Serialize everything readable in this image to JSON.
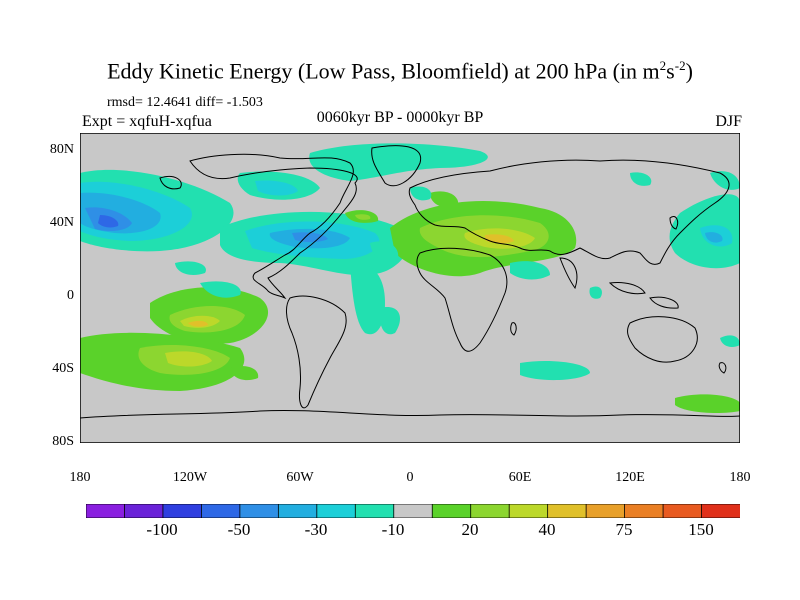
{
  "figure": {
    "title": "Eddy Kinetic Energy (Low Pass, Bloomfield) at 200 hPa (in m",
    "title_unit_sup1": "2",
    "title_mid": "s",
    "title_unit_sup2": "-2",
    "title_close": ")",
    "stats": "rmsd= 12.4641 diff= -1.503",
    "expt": "Expt = xqfuH-xqfua",
    "period": "0060kyr BP - 0000kyr BP",
    "season": "DJF"
  },
  "axes": {
    "lat_labels": [
      "80N",
      "40N",
      "0",
      "40S",
      "80S"
    ],
    "lon_labels": [
      "180",
      "120W",
      "60W",
      "0",
      "60E",
      "120E",
      "180"
    ]
  },
  "colorbar": {
    "colors": [
      "#8a1fe0",
      "#6a22d8",
      "#2f3fe0",
      "#2e68e6",
      "#2f8fe6",
      "#22aee0",
      "#1ccfd8",
      "#22e0b0",
      "#c8c8c8",
      "#5ad22a",
      "#8cd630",
      "#bcd82a",
      "#e0c02a",
      "#e8a02a",
      "#ea7f24",
      "#e85a20",
      "#e0301a"
    ],
    "labels": [
      "-100",
      "-50",
      "-30",
      "-10",
      "20",
      "40",
      "75",
      "150"
    ]
  },
  "colors": {
    "background_field": "#c8c8c8",
    "coast": "#000000"
  }
}
